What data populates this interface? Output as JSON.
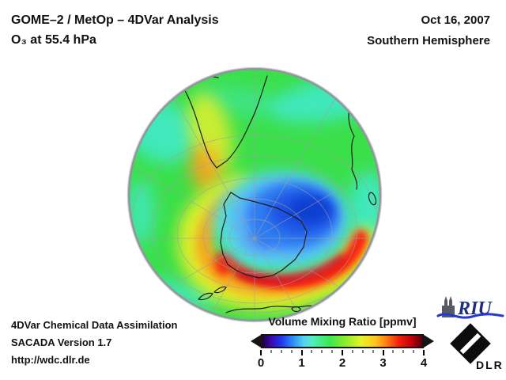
{
  "header": {
    "title_line1": "GOME–2 / MetOp – 4DVar Analysis",
    "title_line2": "O₃ at 55.4 hPa",
    "date": "Oct 16, 2007",
    "hemisphere": "Southern Hemisphere"
  },
  "footer": {
    "line1": "4DVar Chemical Data Assimilation",
    "line2": "SACADA Version 1.7",
    "line3": "http://wdc.dlr.de"
  },
  "colorbar": {
    "title": "Volume Mixing Ratio [ppmv]",
    "tick_labels": [
      "0",
      "1",
      "2",
      "3",
      "4"
    ],
    "min": 0,
    "max": 4,
    "gradient_stops": [
      "#1c0140 0%",
      "#3a07a8 5%",
      "#2337ee 12%",
      "#2b8cf5 19%",
      "#55d3f0 26%",
      "#53ecc6 31%",
      "#3ce84e 42%",
      "#8cee2e 52%",
      "#e8f22a 62%",
      "#ffc31c 71%",
      "#ff7a12 78%",
      "#f5230e 85%",
      "#c4020a 93%",
      "#570008 100%"
    ]
  },
  "logos": {
    "riu_text": "RIU",
    "dlr_text": "DLR"
  },
  "map": {
    "visible_landmasses": [
      "South America",
      "Africa",
      "Madagascar",
      "Antarctica",
      "Australia",
      "Tasmania",
      "New Zealand"
    ],
    "colors": {
      "green": "#3bdf4a",
      "cyan": "#41e9c6",
      "cyan_fringe": "#4fe2d8",
      "blue_light": "#5ab2fb",
      "blue_mid": "#2e7bf2",
      "blue_deep": "#1b53e4",
      "blue_core": "#0d41d2",
      "yellow": "#eef02c",
      "orange": "#ffa01e",
      "red": "#fb1e10",
      "red_dark": "#d2031f",
      "rim": "#90959b",
      "graticule": "#a0a0a0",
      "coast": "#1b1b1b"
    }
  },
  "chart_data": {
    "type": "heatmap",
    "title": "GOME–2 / MetOp – 4DVar Analysis, O₃ at 55.4 hPa",
    "date": "Oct 16, 2007",
    "region": "Southern Hemisphere, south-polar orthographic globe view",
    "variable": "O₃ volume mixing ratio",
    "units": "ppmv",
    "scale_range": [
      0,
      4
    ],
    "colorbar_ticks": [
      0,
      1,
      2,
      3,
      4
    ],
    "legend_position": "bottom-center",
    "features": [
      {
        "feature": "Antarctic ozone hole core (polar vortex over Antarctica)",
        "approx_value_ppmv": 1.0,
        "color": "deep blue"
      },
      {
        "feature": "Inner hole fringe",
        "approx_value_ppmv": 1.6,
        "color": "light blue / cyan"
      },
      {
        "feature": "Vortex-edge collar maximum south-east of the hole",
        "approx_value_ppmv": 3.6,
        "color": "red / dark red"
      },
      {
        "feature": "Collar ring west and south of the vortex",
        "approx_value_ppmv": 3.0,
        "color": "orange-yellow"
      },
      {
        "feature": "Elevated band over southern South America",
        "approx_value_ppmv": 2.8,
        "color": "yellow-orange"
      },
      {
        "feature": "Mid-latitude background",
        "approx_value_ppmv": 2.2,
        "color": "green"
      },
      {
        "feature": "Low bands near the limb (subtropics, Atlantic / Indian Ocean sectors)",
        "approx_value_ppmv": 1.8,
        "color": "cyan"
      }
    ]
  }
}
